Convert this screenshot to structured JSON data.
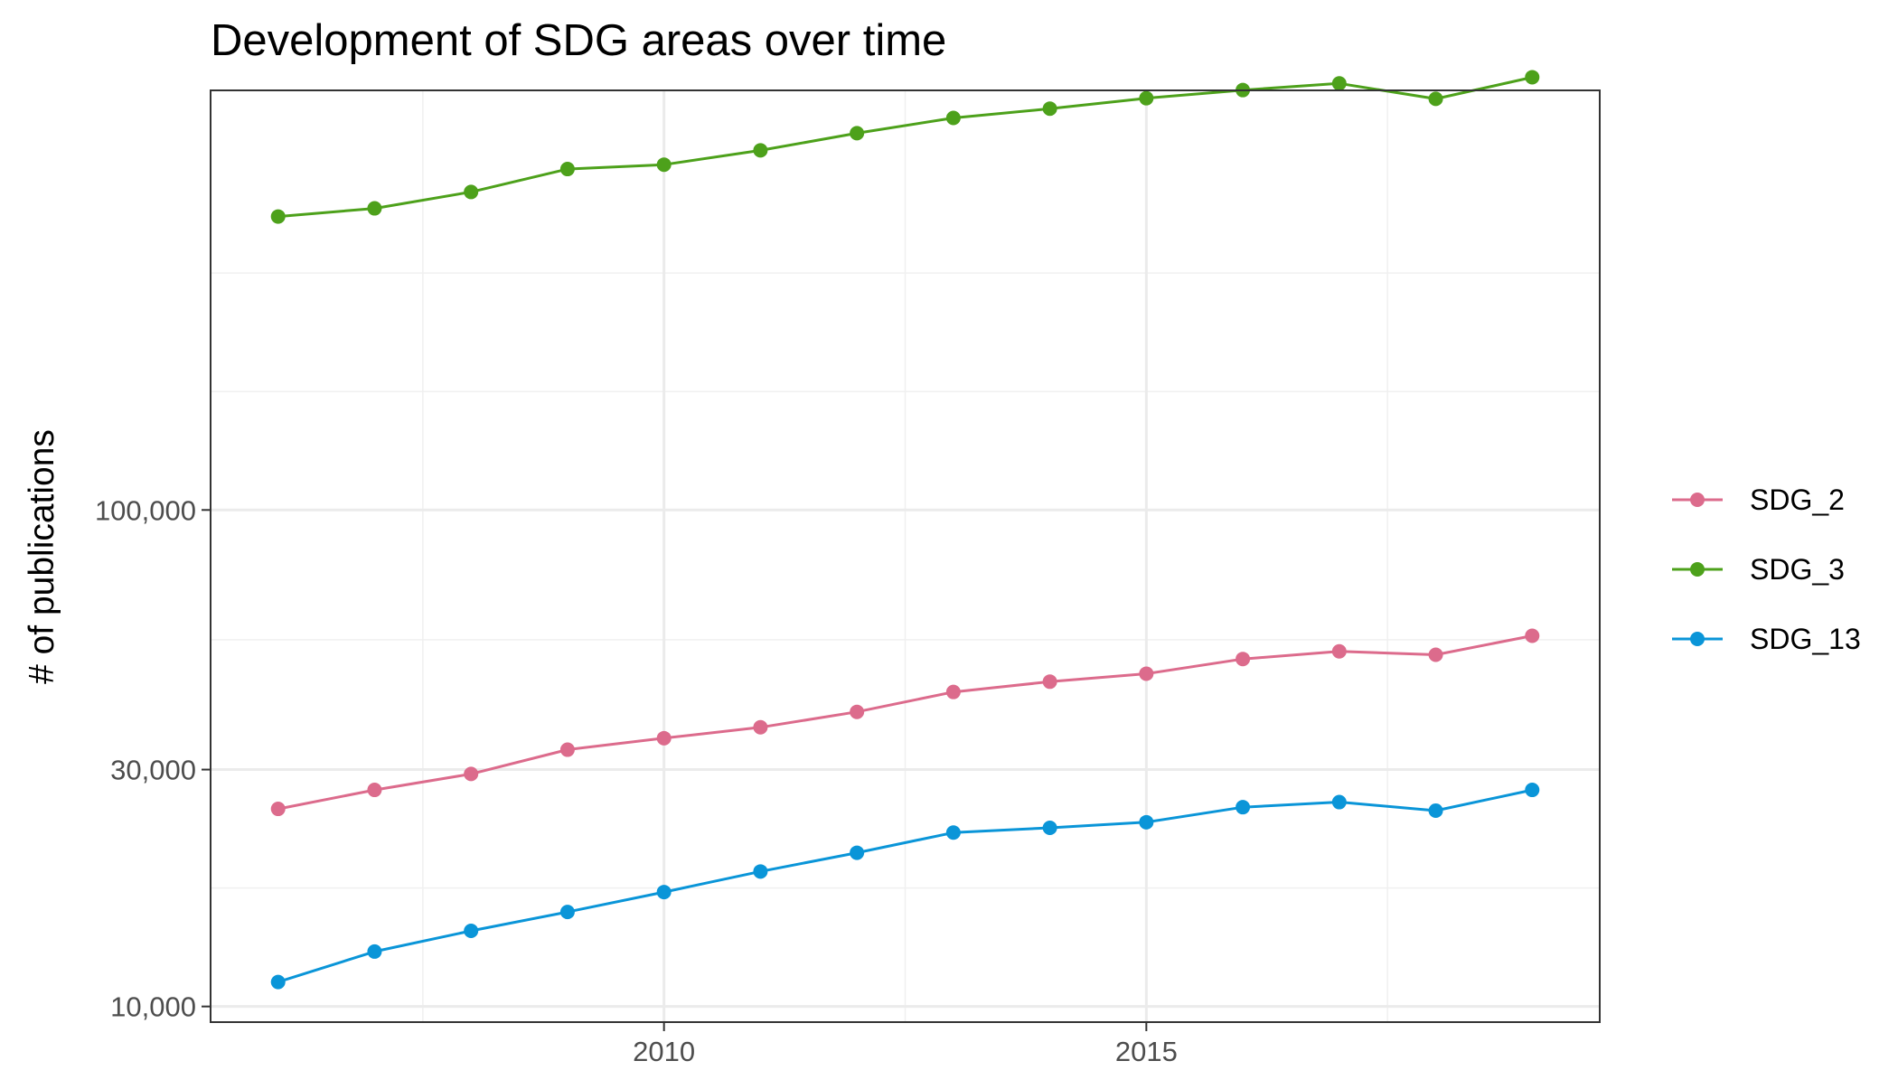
{
  "chart_data": {
    "type": "line",
    "title": "Development of SDG areas over time",
    "xlabel": "",
    "ylabel": "# of publications",
    "y_scale": "log",
    "xlim": [
      2005.3,
      2019.7
    ],
    "ylim": [
      9300,
      700000
    ],
    "x_ticks": [
      2010,
      2015
    ],
    "x_tick_labels": [
      "2010",
      "2015"
    ],
    "x_minor_ticks": [
      2007.5,
      2012.5,
      2017.5
    ],
    "y_ticks": [
      10000,
      30000,
      100000
    ],
    "y_tick_labels": [
      "10,000",
      "30,000",
      "100,000"
    ],
    "y_minor_ticks": [
      17320,
      54770,
      173200,
      300000
    ],
    "grid": true,
    "legend_position": "right",
    "x": [
      2006,
      2007,
      2008,
      2009,
      2010,
      2011,
      2012,
      2013,
      2014,
      2015,
      2016,
      2017,
      2018,
      2019
    ],
    "series": [
      {
        "name": "SDG_2",
        "color": "#dc6b8c",
        "values": [
          25000,
          27300,
          29400,
          32900,
          34700,
          36500,
          39200,
          43000,
          45100,
          46800,
          50100,
          51900,
          51100,
          55800
        ]
      },
      {
        "name": "SDG_3",
        "color": "#4da11b",
        "values": [
          390000,
          405000,
          437000,
          486000,
          496000,
          530000,
          574000,
          616000,
          643000,
          675000,
          701000,
          723000,
          673000,
          744000
        ]
      },
      {
        "name": "SDG_13",
        "color": "#0a95d8",
        "values": [
          11200,
          12900,
          14200,
          15500,
          17000,
          18700,
          20400,
          22400,
          22900,
          23500,
          25200,
          25800,
          24800,
          27300
        ]
      }
    ]
  }
}
